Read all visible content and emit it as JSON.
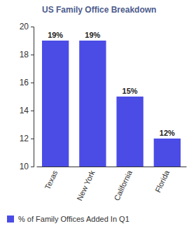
{
  "chart_data": {
    "type": "bar",
    "title": "US Family Office Breakdown",
    "categories": [
      "Texas",
      "New York",
      "California",
      "Florida"
    ],
    "series": [
      {
        "name": "% of Family Offices Added In Q1",
        "color": "#4b4ce6",
        "values": [
          19,
          19,
          15,
          12
        ],
        "value_labels": [
          "19%",
          "19%",
          "15%",
          "12%"
        ]
      }
    ],
    "ylim": [
      10,
      20
    ],
    "yticks": [
      10,
      12,
      14,
      16,
      18,
      20
    ],
    "grid": false,
    "data_labels": true,
    "legend": "bottom"
  }
}
